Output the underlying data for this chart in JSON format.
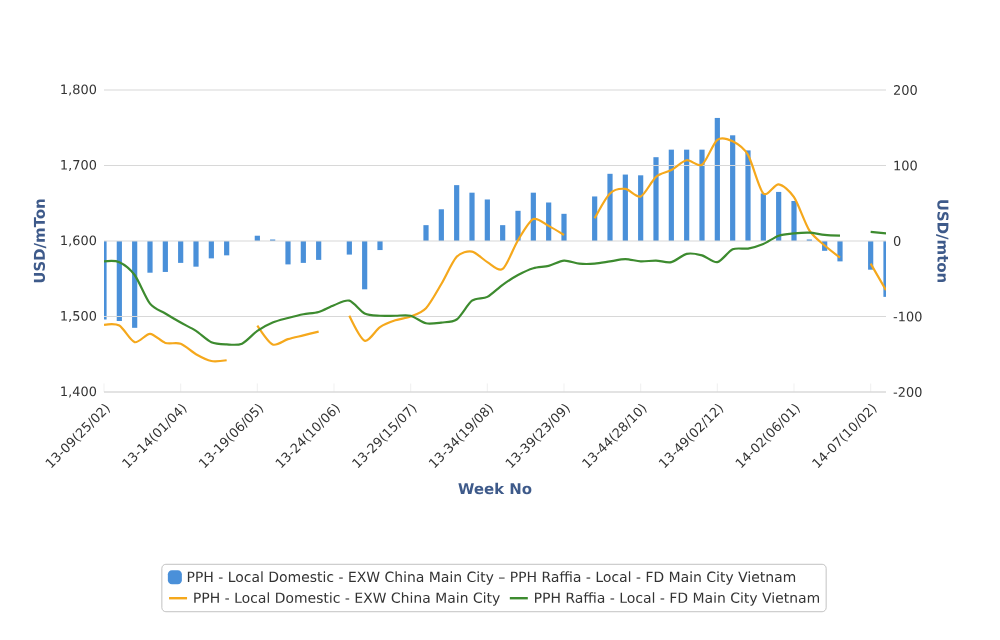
{
  "chart_data": {
    "type": "bar",
    "xlabel": "Week No",
    "ylabel": "USD/mTon",
    "y2label": "USD/mton",
    "categories": [
      "13-09(25/02)",
      null,
      null,
      null,
      null,
      "13-14(01/04)",
      null,
      null,
      null,
      null,
      "13-19(06/05)",
      null,
      null,
      null,
      null,
      "13-24(10/06)",
      null,
      null,
      null,
      null,
      "13-29(15/07)",
      null,
      null,
      null,
      null,
      "13-34(19/08)",
      null,
      null,
      null,
      null,
      "13-39(23/09)",
      null,
      null,
      null,
      null,
      "13-44(28/10)",
      null,
      null,
      null,
      null,
      "13-49(02/12)",
      null,
      null,
      null,
      null,
      "14-02(06/01)",
      null,
      null,
      null,
      null,
      "14-07(10/02)",
      null
    ],
    "series": [
      {
        "name": "PPH - Local Domestic - EXW China Main City – PPH Raffia - Local - FD Main City Vietnam",
        "axis": "y2",
        "color": "#4a90d9",
        "values": [
          -104,
          -106,
          -115,
          -42,
          -41,
          -29,
          -34,
          -23,
          -19,
          null,
          7,
          2,
          -31,
          -29,
          -25,
          null,
          -18,
          -64,
          -12,
          null,
          null,
          21,
          42,
          74,
          64,
          55,
          21,
          40,
          64,
          51,
          36,
          null,
          59,
          89,
          88,
          87,
          111,
          121,
          121,
          121,
          163,
          140,
          120,
          63,
          65,
          53,
          2,
          -13,
          -27,
          null,
          -38,
          -74
        ]
      },
      {
        "name": "PPH - Local Domestic - EXW China Main City",
        "type": "line",
        "color": "#f5a81c",
        "values": [
          1489,
          1488,
          1466,
          1477,
          1465,
          1464,
          1450,
          1441,
          1442,
          null,
          1488,
          1463,
          1470,
          1475,
          1480,
          null,
          1501,
          1468,
          1486,
          1495,
          1500,
          1511,
          1543,
          1579,
          1586,
          1572,
          1563,
          1601,
          1629,
          1620,
          1608,
          null,
          1630,
          1663,
          1669,
          1659,
          1685,
          1694,
          1707,
          1701,
          1734,
          1732,
          1714,
          1663,
          1675,
          1658,
          1614,
          1594,
          1578,
          null,
          1570,
          1535
        ]
      },
      {
        "name": "PPH Raffia - Local - FD Main City Vietnam",
        "type": "line",
        "color": "#3d8b2f",
        "values": [
          1573,
          1572,
          1555,
          1517,
          1504,
          1492,
          1481,
          1466,
          1463,
          1464,
          1481,
          1492,
          1498,
          1503,
          1506,
          1515,
          1521,
          1504,
          1501,
          1501,
          1501,
          1491,
          1492,
          1496,
          1521,
          1526,
          1542,
          1555,
          1564,
          1567,
          1574,
          1570,
          1570,
          1573,
          1576,
          1573,
          1574,
          1572,
          1583,
          1581,
          1572,
          1589,
          1590,
          1596,
          1607,
          1610,
          1611,
          1608,
          1607,
          null,
          1612,
          1610
        ]
      }
    ],
    "ylim": [
      1400,
      1800
    ],
    "yticks": [
      {
        "value": 1400,
        "label": "1,400"
      },
      {
        "value": 1500,
        "label": "1,500"
      },
      {
        "value": 1600,
        "label": "1,600"
      },
      {
        "value": 1700,
        "label": "1,700"
      },
      {
        "value": 1800,
        "label": "1,800"
      }
    ],
    "y2lim": [
      -200,
      200
    ],
    "y2ticks": [
      -200,
      -100,
      0,
      100,
      200
    ],
    "grid": "y",
    "legend": "bottom"
  }
}
